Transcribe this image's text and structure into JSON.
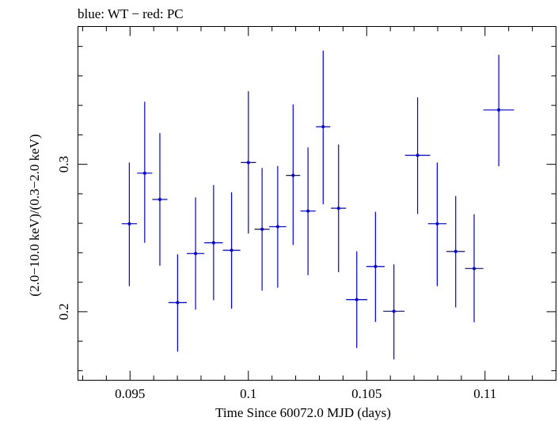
{
  "chart_data": {
    "type": "scatter",
    "title": "blue: WT − red: PC",
    "xlabel": "Time Since 60072.0 MJD (days)",
    "ylabel": "(2.0−10.0 keV)/(0.3−2.0 keV)",
    "xlim": [
      0.0928,
      0.113
    ],
    "ylim": [
      0.1535,
      0.3935
    ],
    "x_ticks": [
      {
        "value": 0.095,
        "label": "0.095"
      },
      {
        "value": 0.1,
        "label": "0.1"
      },
      {
        "value": 0.105,
        "label": "0.105"
      },
      {
        "value": 0.11,
        "label": "0.11"
      }
    ],
    "y_ticks": [
      {
        "value": 0.2,
        "label": "0.2"
      },
      {
        "value": 0.3,
        "label": "0.3"
      }
    ],
    "grid": false,
    "series": [
      {
        "name": "WT",
        "color": "#0000ee",
        "points": [
          {
            "x": 0.09497,
            "y": 0.2597,
            "xerr": 0.00032,
            "ylo": 0.2173,
            "yhi": 0.3012
          },
          {
            "x": 0.09562,
            "y": 0.294,
            "xerr": 0.00032,
            "ylo": 0.2468,
            "yhi": 0.3425
          },
          {
            "x": 0.09626,
            "y": 0.2762,
            "xerr": 0.00032,
            "ylo": 0.2312,
            "yhi": 0.3212
          },
          {
            "x": 0.09701,
            "y": 0.2062,
            "xerr": 0.00039,
            "ylo": 0.1729,
            "yhi": 0.239
          },
          {
            "x": 0.09777,
            "y": 0.2395,
            "xerr": 0.00037,
            "ylo": 0.2014,
            "yhi": 0.2776
          },
          {
            "x": 0.09853,
            "y": 0.2468,
            "xerr": 0.00039,
            "ylo": 0.2078,
            "yhi": 0.286
          },
          {
            "x": 0.09929,
            "y": 0.2417,
            "xerr": 0.00037,
            "ylo": 0.2021,
            "yhi": 0.281
          },
          {
            "x": 0.1,
            "y": 0.3012,
            "xerr": 0.00032,
            "ylo": 0.253,
            "yhi": 0.3496
          },
          {
            "x": 0.10058,
            "y": 0.256,
            "xerr": 0.00032,
            "ylo": 0.2143,
            "yhi": 0.2975
          },
          {
            "x": 0.10124,
            "y": 0.2577,
            "xerr": 0.00036,
            "ylo": 0.2163,
            "yhi": 0.2989
          },
          {
            "x": 0.10189,
            "y": 0.2925,
            "xerr": 0.0003,
            "ylo": 0.2453,
            "yhi": 0.3406
          },
          {
            "x": 0.10252,
            "y": 0.2683,
            "xerr": 0.00032,
            "ylo": 0.2248,
            "yhi": 0.3115
          },
          {
            "x": 0.10316,
            "y": 0.3255,
            "xerr": 0.0003,
            "ylo": 0.2729,
            "yhi": 0.3772
          },
          {
            "x": 0.10381,
            "y": 0.2702,
            "xerr": 0.00032,
            "ylo": 0.2268,
            "yhi": 0.3135
          },
          {
            "x": 0.10458,
            "y": 0.2082,
            "xerr": 0.00045,
            "ylo": 0.1754,
            "yhi": 0.241
          },
          {
            "x": 0.10537,
            "y": 0.2307,
            "xerr": 0.00039,
            "ylo": 0.1931,
            "yhi": 0.2678
          },
          {
            "x": 0.10615,
            "y": 0.2003,
            "xerr": 0.00045,
            "ylo": 0.1676,
            "yhi": 0.2321
          },
          {
            "x": 0.10715,
            "y": 0.3061,
            "xerr": 0.00053,
            "ylo": 0.2663,
            "yhi": 0.3454
          },
          {
            "x": 0.10798,
            "y": 0.2597,
            "xerr": 0.00039,
            "ylo": 0.2173,
            "yhi": 0.3012
          },
          {
            "x": 0.10876,
            "y": 0.2409,
            "xerr": 0.00039,
            "ylo": 0.2029,
            "yhi": 0.2785
          },
          {
            "x": 0.10954,
            "y": 0.2293,
            "xerr": 0.00039,
            "ylo": 0.1928,
            "yhi": 0.2661
          },
          {
            "x": 0.11058,
            "y": 0.3369,
            "xerr": 0.00065,
            "ylo": 0.2987,
            "yhi": 0.3743
          }
        ]
      }
    ]
  }
}
